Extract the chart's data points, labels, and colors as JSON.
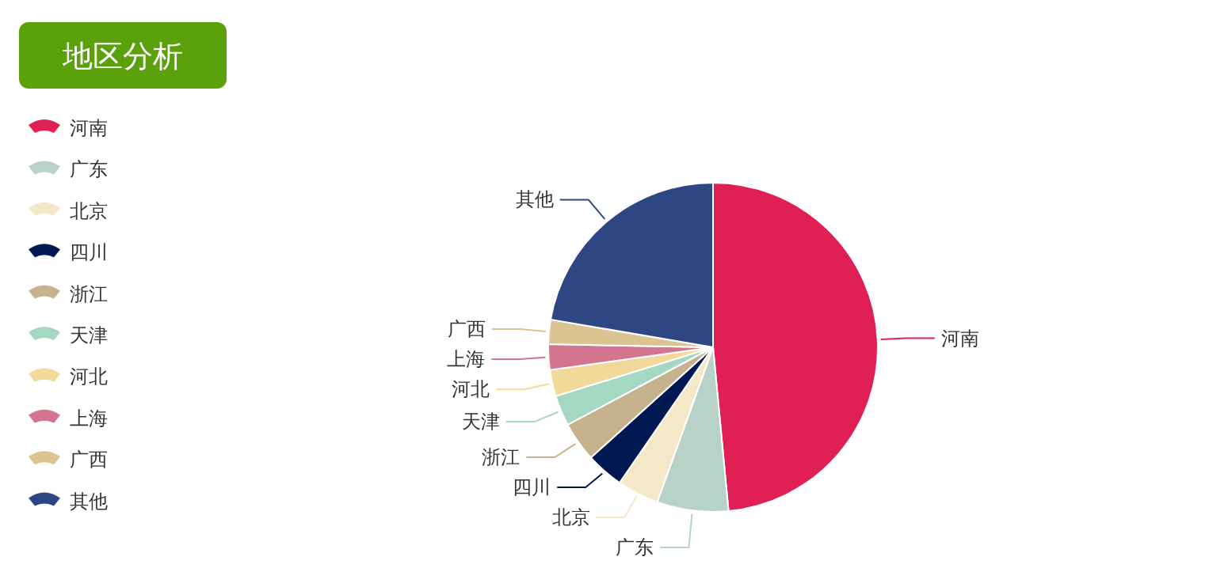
{
  "chart_data": {
    "type": "pie",
    "title": "地区分析",
    "categories": [
      "河南",
      "广东",
      "北京",
      "四川",
      "浙江",
      "天津",
      "河北",
      "上海",
      "广西",
      "其他"
    ],
    "values": [
      48.5,
      7.0,
      4.1,
      3.7,
      3.9,
      3.0,
      2.6,
      2.5,
      2.4,
      22.3
    ],
    "colors": [
      "#e01f54",
      "#b8d2c7",
      "#f5e8c8",
      "#001852",
      "#c6b38e",
      "#a4d8c2",
      "#f3d999",
      "#d3758f",
      "#dcc392",
      "#2e4783"
    ],
    "legend": "left"
  }
}
